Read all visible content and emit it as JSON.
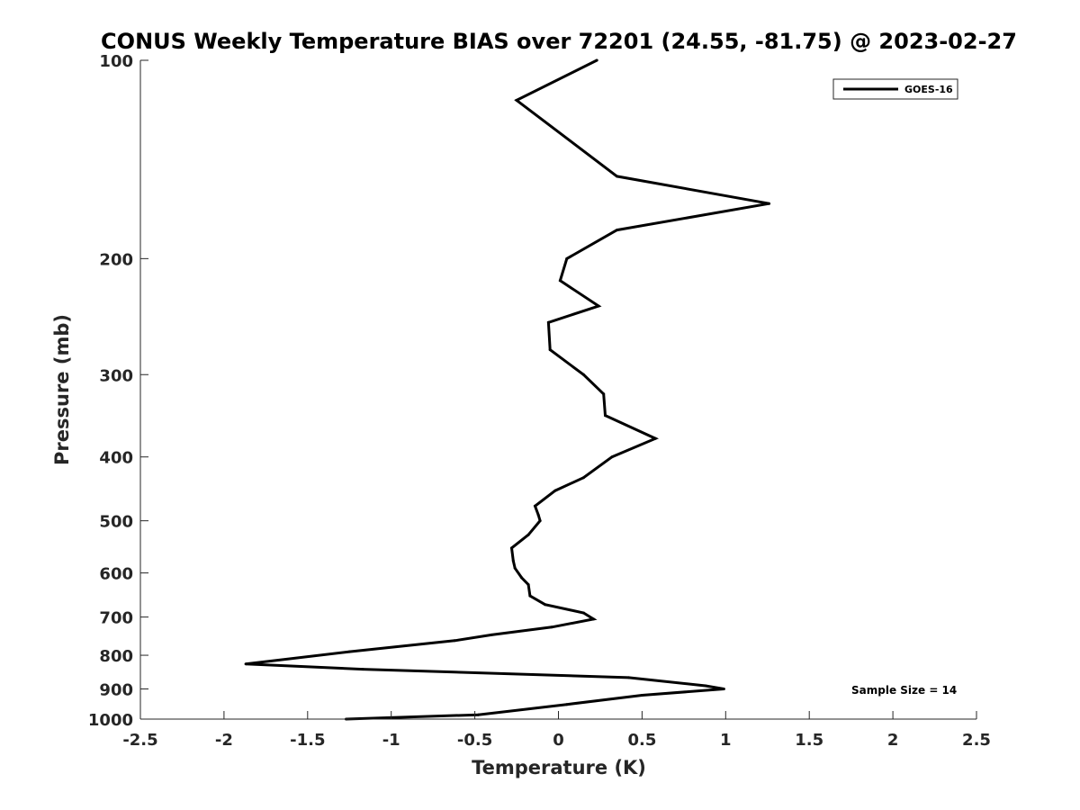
{
  "chart_data": {
    "type": "line",
    "title": "CONUS Weekly Temperature BIAS over 72201 (24.55, -81.75) @ 2023-02-27",
    "xlabel": "Temperature (K)",
    "ylabel": "Pressure (mb)",
    "xlim": [
      -2.5,
      2.5
    ],
    "ylim": [
      1000,
      100
    ],
    "yscale": "log",
    "y_reversed": true,
    "grid": false,
    "legend_position": "top-right",
    "x_ticks": [
      -2.5,
      -2,
      -1.5,
      -1,
      -0.5,
      0,
      0.5,
      1,
      1.5,
      2,
      2.5
    ],
    "x_tick_labels": [
      "-2.5",
      "-2",
      "-1.5",
      "-1",
      "-0.5",
      "0",
      "0.5",
      "1",
      "1.5",
      "2",
      "2.5"
    ],
    "y_ticks": [
      100,
      200,
      300,
      400,
      500,
      600,
      700,
      800,
      900,
      1000
    ],
    "y_tick_labels": [
      "100",
      "200",
      "300",
      "400",
      "500",
      "600",
      "700",
      "800",
      "900",
      "1000"
    ],
    "annotation": "Sample Size = 14",
    "series": [
      {
        "name": "GOES-16",
        "color": "#000000",
        "points": [
          {
            "x": 0.23,
            "y": 100
          },
          {
            "x": -0.25,
            "y": 115
          },
          {
            "x": 0.35,
            "y": 150
          },
          {
            "x": 1.26,
            "y": 165
          },
          {
            "x": 0.35,
            "y": 181
          },
          {
            "x": 0.05,
            "y": 200
          },
          {
            "x": 0.01,
            "y": 216
          },
          {
            "x": 0.24,
            "y": 236
          },
          {
            "x": -0.06,
            "y": 250
          },
          {
            "x": -0.05,
            "y": 275
          },
          {
            "x": 0.15,
            "y": 300
          },
          {
            "x": 0.27,
            "y": 321
          },
          {
            "x": 0.28,
            "y": 346
          },
          {
            "x": 0.58,
            "y": 375
          },
          {
            "x": 0.32,
            "y": 400
          },
          {
            "x": 0.15,
            "y": 430
          },
          {
            "x": -0.02,
            "y": 450
          },
          {
            "x": -0.14,
            "y": 475
          },
          {
            "x": -0.12,
            "y": 490
          },
          {
            "x": -0.11,
            "y": 500
          },
          {
            "x": -0.18,
            "y": 525
          },
          {
            "x": -0.28,
            "y": 550
          },
          {
            "x": -0.27,
            "y": 575
          },
          {
            "x": -0.26,
            "y": 590
          },
          {
            "x": -0.22,
            "y": 610
          },
          {
            "x": -0.18,
            "y": 625
          },
          {
            "x": -0.17,
            "y": 650
          },
          {
            "x": -0.08,
            "y": 670
          },
          {
            "x": 0.15,
            "y": 690
          },
          {
            "x": 0.21,
            "y": 705
          },
          {
            "x": -0.04,
            "y": 725
          },
          {
            "x": -0.4,
            "y": 745
          },
          {
            "x": -0.62,
            "y": 760
          },
          {
            "x": -1.25,
            "y": 790
          },
          {
            "x": -1.87,
            "y": 825
          },
          {
            "x": -1.17,
            "y": 840
          },
          {
            "x": 0.42,
            "y": 865
          },
          {
            "x": 0.88,
            "y": 890
          },
          {
            "x": 0.99,
            "y": 900
          },
          {
            "x": 0.5,
            "y": 920
          },
          {
            "x": 0.05,
            "y": 950
          },
          {
            "x": -0.48,
            "y": 985
          },
          {
            "x": -1.27,
            "y": 1000
          }
        ]
      }
    ]
  }
}
